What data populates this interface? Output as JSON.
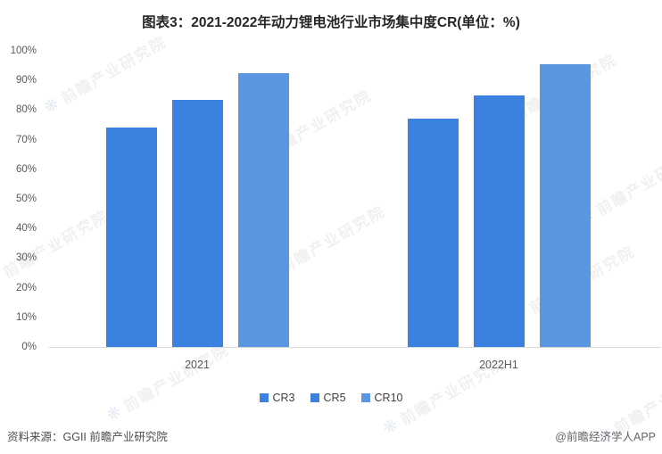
{
  "title": "图表3：2021-2022年动力锂电池行业市场集中度CR(单位：%)",
  "chart_data": {
    "type": "bar",
    "title": "图表3：2021-2022年动力锂电池行业市场集中度CR(单位：%)",
    "unit": "%",
    "categories": [
      "2021",
      "2022H1"
    ],
    "series": [
      {
        "name": "CR3",
        "color": "#3b81e0",
        "values": [
          74,
          77
        ]
      },
      {
        "name": "CR5",
        "color": "#3b81e0",
        "values": [
          83.5,
          85
        ]
      },
      {
        "name": "CR10",
        "color": "#5b96e0",
        "values": [
          92.5,
          95.5
        ]
      }
    ],
    "ylim": [
      0,
      100
    ],
    "ytick_step": 10,
    "ytick_labels": [
      "0%",
      "10%",
      "20%",
      "30%",
      "40%",
      "50%",
      "60%",
      "70%",
      "80%",
      "90%",
      "100%"
    ],
    "grid": false,
    "legend_position": "bottom",
    "legend": [
      "CR3",
      "CR5",
      "CR10"
    ]
  },
  "footer": {
    "source": "资料来源：GGII 前瞻产业研究院",
    "credit": "@前瞻经济学人APP"
  },
  "watermark": {
    "text": "前瞻产业研究院",
    "logo_icon": "flower-swirl-icon",
    "color": "rgba(140,140,145,0.13)"
  }
}
